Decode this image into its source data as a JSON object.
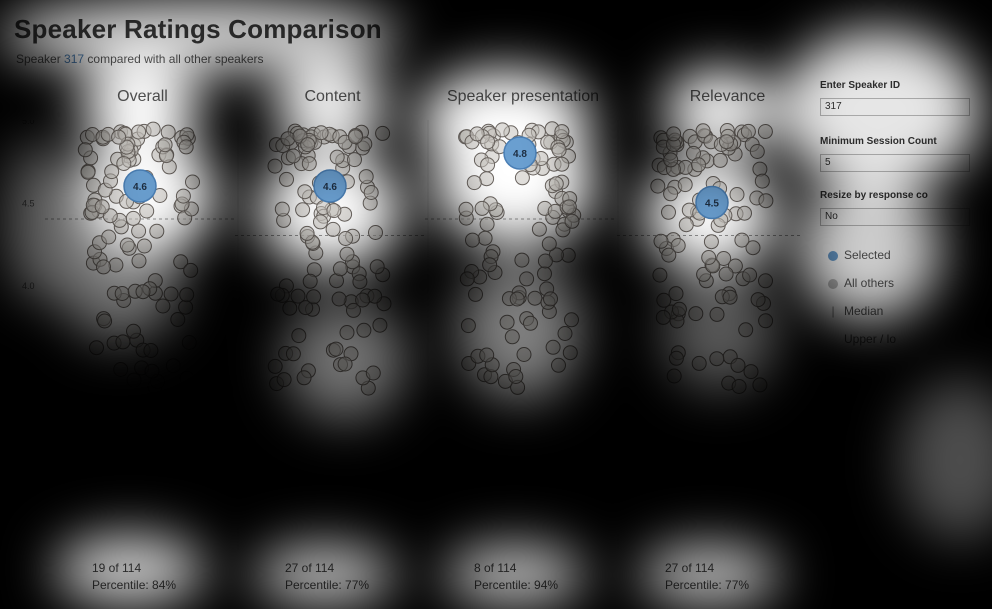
{
  "title": "Speaker Ratings Comparison",
  "subtitle": {
    "prefix": "Speaker",
    "speaker_id": "317",
    "suffix": "compared with all other speakers"
  },
  "panel": {
    "speaker_id_label": "Enter Speaker ID",
    "speaker_id_value": "317",
    "min_session_label": "Minimum Session Count",
    "min_session_value": "5",
    "resize_label": "Resize by response co",
    "resize_value": "No",
    "legend": [
      {
        "label": "Selected",
        "color": "#6a9fd0"
      },
      {
        "label": "All others",
        "color": "#bdbdbd"
      },
      {
        "label": "Median",
        "color": "#888888"
      },
      {
        "label": "Upper / lo",
        "color": "#888888"
      }
    ]
  },
  "colors": {
    "selected": "#6a9fd0",
    "others_fill": "#c9c4c0",
    "others_stroke": "#6b6560",
    "median": "#999999"
  },
  "chart_data": {
    "type": "scatter",
    "y_ticks": [
      "5.0",
      "4.5",
      "4.0"
    ],
    "ylim": [
      3.0,
      5.0
    ],
    "categories": [
      "Overall",
      "Content",
      "Speaker presentation",
      "Relevance"
    ],
    "selected_values": [
      4.6,
      4.6,
      4.8,
      4.5
    ],
    "selected_labels": [
      "4.6",
      "4.6",
      "4.8",
      "4.5"
    ],
    "medians": [
      4.4,
      4.3,
      4.4,
      4.3
    ],
    "footers": [
      {
        "rank": "19 of 114",
        "percentile": "Percentile: 84%"
      },
      {
        "rank": "27 of 114",
        "percentile": "Percentile: 77%"
      },
      {
        "rank": "8 of 114",
        "percentile": "Percentile: 94%"
      },
      {
        "rank": "27 of 114",
        "percentile": "Percentile: 77%"
      }
    ]
  }
}
